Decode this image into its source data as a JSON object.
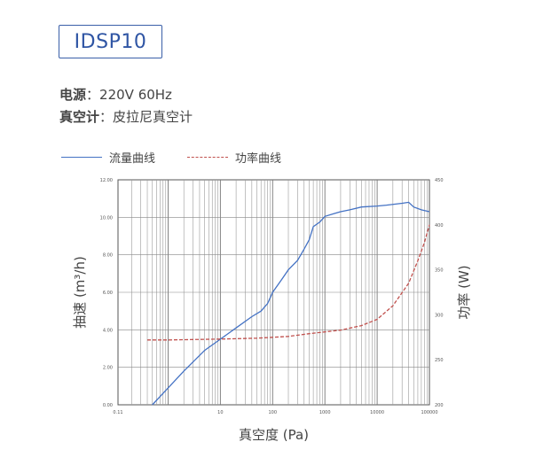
{
  "model": "IDSP10",
  "specs": [
    {
      "label": "电源",
      "value": "220V 60Hz"
    },
    {
      "label": "真空计",
      "value": "皮拉尼真空计"
    }
  ],
  "legend": {
    "flow": "流量曲线",
    "power": "功率曲线"
  },
  "chart_data": {
    "type": "line",
    "xlabel": "真空度 (Pa)",
    "ylabel_left": "抽速 (m³/h)",
    "ylabel_right": "功率 (W)",
    "x_scale": "log",
    "xlim": [
      0.11,
      100000
    ],
    "ylim_left": [
      0,
      12
    ],
    "ylim_right": [
      200,
      450
    ],
    "x_ticks": [
      {
        "value": 0.11,
        "label": "0.11"
      },
      {
        "value": 10,
        "label": "10"
      },
      {
        "value": 100,
        "label": "100"
      },
      {
        "value": 1000,
        "label": "1000"
      },
      {
        "value": 10000,
        "label": "10000"
      },
      {
        "value": 100000,
        "label": "100000"
      }
    ],
    "y_left_ticks": [
      "0.00",
      "2.00",
      "4.00",
      "6.00",
      "8.00",
      "10.00",
      "12.00"
    ],
    "y_right_ticks": [
      "200",
      "250",
      "300",
      "350",
      "400",
      "450"
    ],
    "grid": true,
    "series": [
      {
        "name": "流量曲线",
        "axis": "left",
        "color": "#4472c4",
        "style": "solid",
        "points": [
          [
            0.5,
            0
          ],
          [
            1,
            0.9
          ],
          [
            2,
            1.8
          ],
          [
            5,
            2.9
          ],
          [
            10,
            3.5
          ],
          [
            20,
            4.1
          ],
          [
            40,
            4.7
          ],
          [
            60,
            5.0
          ],
          [
            80,
            5.4
          ],
          [
            100,
            6.0
          ],
          [
            150,
            6.7
          ],
          [
            200,
            7.2
          ],
          [
            300,
            7.7
          ],
          [
            400,
            8.3
          ],
          [
            500,
            8.8
          ],
          [
            600,
            9.5
          ],
          [
            800,
            9.75
          ],
          [
            1000,
            10.05
          ],
          [
            1500,
            10.2
          ],
          [
            2000,
            10.3
          ],
          [
            3000,
            10.4
          ],
          [
            5000,
            10.55
          ],
          [
            10000,
            10.6
          ],
          [
            15000,
            10.65
          ],
          [
            30000,
            10.75
          ],
          [
            40000,
            10.8
          ],
          [
            50000,
            10.55
          ],
          [
            70000,
            10.4
          ],
          [
            100000,
            10.3
          ]
        ]
      },
      {
        "name": "功率曲线",
        "axis": "right",
        "color": "#c0504d",
        "style": "dashed",
        "points": [
          [
            0.4,
            272
          ],
          [
            1,
            272
          ],
          [
            10,
            273
          ],
          [
            50,
            274
          ],
          [
            100,
            275
          ],
          [
            200,
            276
          ],
          [
            500,
            279
          ],
          [
            1000,
            281
          ],
          [
            2000,
            283
          ],
          [
            5000,
            288
          ],
          [
            10000,
            295
          ],
          [
            20000,
            310
          ],
          [
            40000,
            335
          ],
          [
            60000,
            360
          ],
          [
            80000,
            380
          ],
          [
            100000,
            400
          ]
        ]
      }
    ]
  }
}
